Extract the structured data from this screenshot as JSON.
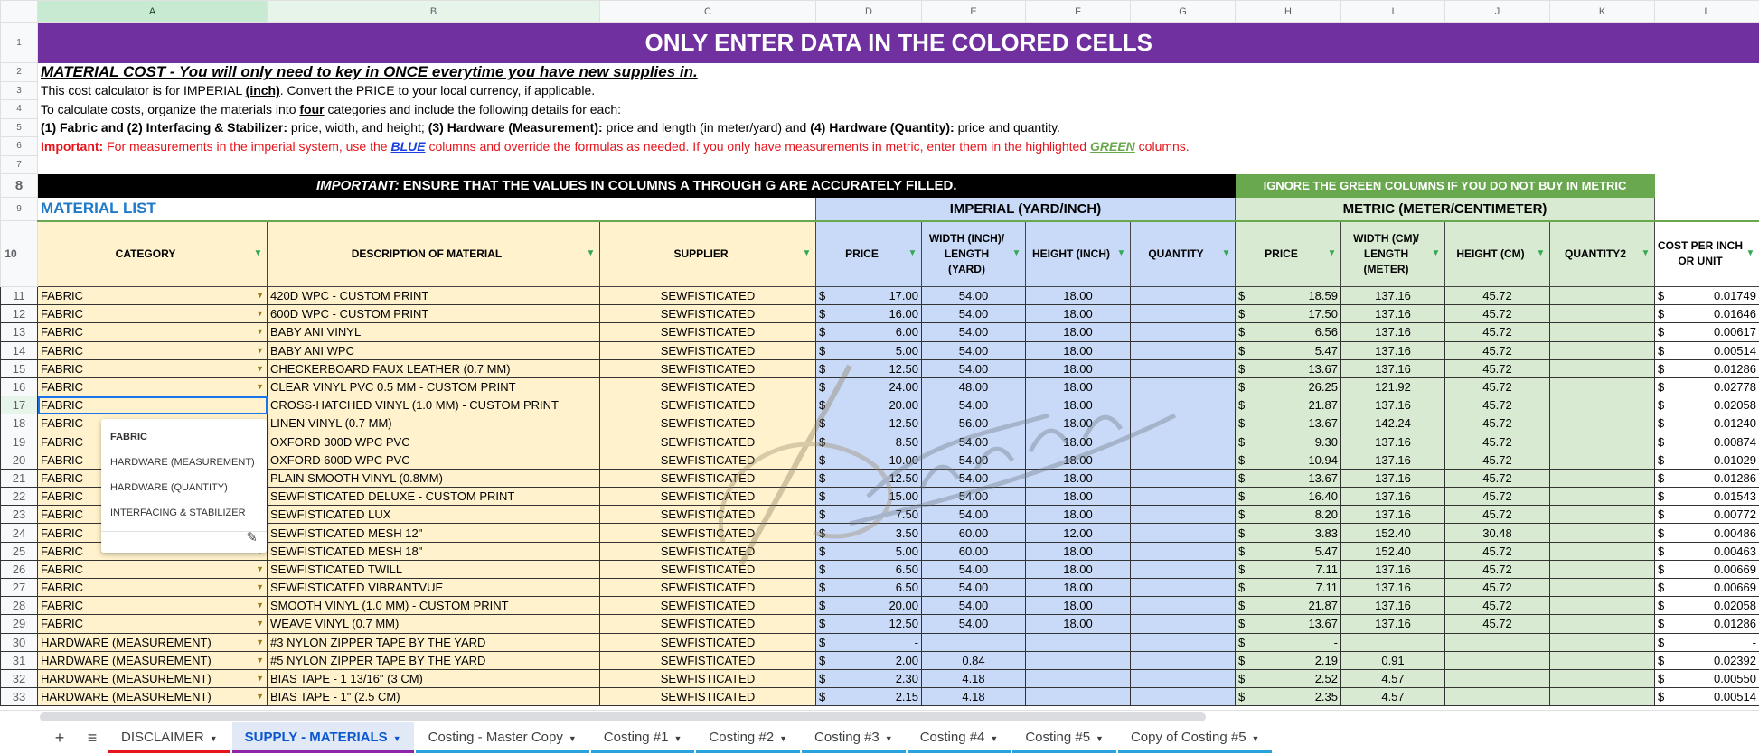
{
  "columns": [
    "A",
    "B",
    "C",
    "D",
    "E",
    "F",
    "G",
    "H",
    "I",
    "J",
    "K",
    "L"
  ],
  "title": "ONLY ENTER DATA IN THE COLORED CELLS",
  "intro": {
    "line2": "MATERIAL COST - You will only need to key in ONCE everytime you have new supplies in.",
    "line3a": "This cost calculator is for IMPERIAL ",
    "line3b": "(inch)",
    "line3c": ".  Convert the PRICE to your local currency, if applicable.",
    "line4a": "To calculate costs, organize the materials into ",
    "line4b": "four",
    "line4c": " categories and include the following details for each:",
    "line5a": "(1) Fabric and (2) Interfacing & Stabilizer:",
    "line5b": " price, width, and height; ",
    "line5c": "(3) Hardware (Measurement):",
    "line5d": " price and length (in meter/yard) and ",
    "line5e": "(4) Hardware (Quantity):",
    "line5f": " price and quantity.",
    "line6a": "Important:",
    "line6b": " For measurements in the imperial system, use the ",
    "line6c": "BLUE",
    "line6d": " columns and override the formulas as needed. If you only have measurements in metric, enter them in the highlighted ",
    "line6e": "GREEN",
    "line6f": " columns."
  },
  "banner": {
    "important_em": "IMPORTANT:",
    "important_rest": " ENSURE THAT THE VALUES IN COLUMNS A THROUGH G ARE ACCURATELY FILLED.",
    "green_note": "IGNORE THE GREEN COLUMNS IF YOU DO NOT BUY IN METRIC"
  },
  "sections": {
    "material_list": "MATERIAL LIST",
    "imperial": "IMPERIAL (YARD/INCH)",
    "metric": "METRIC (METER/CENTIMETER)"
  },
  "headers": [
    "CATEGORY",
    "DESCRIPTION OF MATERIAL",
    "SUPPLIER",
    "PRICE",
    "WIDTH (INCH)/ LENGTH (YARD)",
    "HEIGHT (INCH)",
    "QUANTITY",
    "PRICE",
    "WIDTH (CM)/ LENGTH (METER)",
    "HEIGHT (CM)",
    "QUANTITY2",
    "COST PER INCH OR UNIT"
  ],
  "currency": "$",
  "rows": [
    [
      "FABRIC",
      "420D WPC - CUSTOM PRINT",
      "SEWFISTICATED",
      "17.00",
      "54.00",
      "18.00",
      "",
      "18.59",
      "137.16",
      "45.72",
      "",
      "0.01749"
    ],
    [
      "FABRIC",
      "600D WPC - CUSTOM PRINT",
      "SEWFISTICATED",
      "16.00",
      "54.00",
      "18.00",
      "",
      "17.50",
      "137.16",
      "45.72",
      "",
      "0.01646"
    ],
    [
      "FABRIC",
      "BABY ANI VINYL",
      "SEWFISTICATED",
      "6.00",
      "54.00",
      "18.00",
      "",
      "6.56",
      "137.16",
      "45.72",
      "",
      "0.00617"
    ],
    [
      "FABRIC",
      "BABY ANI WPC",
      "SEWFISTICATED",
      "5.00",
      "54.00",
      "18.00",
      "",
      "5.47",
      "137.16",
      "45.72",
      "",
      "0.00514"
    ],
    [
      "FABRIC",
      "CHECKERBOARD FAUX LEATHER (0.7 MM)",
      "SEWFISTICATED",
      "12.50",
      "54.00",
      "18.00",
      "",
      "13.67",
      "137.16",
      "45.72",
      "",
      "0.01286"
    ],
    [
      "FABRIC",
      "CLEAR VINYL PVC 0.5 MM - CUSTOM PRINT",
      "SEWFISTICATED",
      "24.00",
      "48.00",
      "18.00",
      "",
      "26.25",
      "121.92",
      "45.72",
      "",
      "0.02778"
    ],
    [
      "FABRIC",
      "CROSS-HATCHED VINYL (1.0 MM)  - CUSTOM PRINT",
      "SEWFISTICATED",
      "20.00",
      "54.00",
      "18.00",
      "",
      "21.87",
      "137.16",
      "45.72",
      "",
      "0.02058"
    ],
    [
      "FABRIC",
      "LINEN VINYL (0.7 MM)",
      "SEWFISTICATED",
      "12.50",
      "56.00",
      "18.00",
      "",
      "13.67",
      "142.24",
      "45.72",
      "",
      "0.01240"
    ],
    [
      "FABRIC",
      "OXFORD 300D WPC PVC",
      "SEWFISTICATED",
      "8.50",
      "54.00",
      "18.00",
      "",
      "9.30",
      "137.16",
      "45.72",
      "",
      "0.00874"
    ],
    [
      "FABRIC",
      "OXFORD 600D WPC PVC",
      "SEWFISTICATED",
      "10.00",
      "54.00",
      "18.00",
      "",
      "10.94",
      "137.16",
      "45.72",
      "",
      "0.01029"
    ],
    [
      "FABRIC",
      "PLAIN SMOOTH VINYL (0.8MM)",
      "SEWFISTICATED",
      "12.50",
      "54.00",
      "18.00",
      "",
      "13.67",
      "137.16",
      "45.72",
      "",
      "0.01286"
    ],
    [
      "FABRIC",
      "SEWFISTICATED DELUXE - CUSTOM PRINT",
      "SEWFISTICATED",
      "15.00",
      "54.00",
      "18.00",
      "",
      "16.40",
      "137.16",
      "45.72",
      "",
      "0.01543"
    ],
    [
      "FABRIC",
      "SEWFISTICATED LUX",
      "SEWFISTICATED",
      "7.50",
      "54.00",
      "18.00",
      "",
      "8.20",
      "137.16",
      "45.72",
      "",
      "0.00772"
    ],
    [
      "FABRIC",
      "SEWFISTICATED MESH 12\"",
      "SEWFISTICATED",
      "3.50",
      "60.00",
      "12.00",
      "",
      "3.83",
      "152.40",
      "30.48",
      "",
      "0.00486"
    ],
    [
      "FABRIC",
      "SEWFISTICATED MESH 18\"",
      "SEWFISTICATED",
      "5.00",
      "60.00",
      "18.00",
      "",
      "5.47",
      "152.40",
      "45.72",
      "",
      "0.00463"
    ],
    [
      "FABRIC",
      "SEWFISTICATED TWILL",
      "SEWFISTICATED",
      "6.50",
      "54.00",
      "18.00",
      "",
      "7.11",
      "137.16",
      "45.72",
      "",
      "0.00669"
    ],
    [
      "FABRIC",
      "SEWFISTICATED VIBRANTVUE",
      "SEWFISTICATED",
      "6.50",
      "54.00",
      "18.00",
      "",
      "7.11",
      "137.16",
      "45.72",
      "",
      "0.00669"
    ],
    [
      "FABRIC",
      "SMOOTH VINYL (1.0 MM) - CUSTOM PRINT",
      "SEWFISTICATED",
      "20.00",
      "54.00",
      "18.00",
      "",
      "21.87",
      "137.16",
      "45.72",
      "",
      "0.02058"
    ],
    [
      "FABRIC",
      "WEAVE VINYL (0.7 MM)",
      "SEWFISTICATED",
      "12.50",
      "54.00",
      "18.00",
      "",
      "13.67",
      "137.16",
      "45.72",
      "",
      "0.01286"
    ],
    [
      "HARDWARE (MEASUREMENT)",
      "#3 NYLON ZIPPER TAPE BY THE YARD",
      "SEWFISTICATED",
      "-",
      "",
      "",
      "",
      "-",
      "",
      "",
      "",
      "-"
    ],
    [
      "HARDWARE (MEASUREMENT)",
      "#5 NYLON ZIPPER TAPE BY THE YARD",
      "SEWFISTICATED",
      "2.00",
      "0.84",
      "",
      "",
      "2.19",
      "0.91",
      "",
      "",
      "0.02392"
    ],
    [
      "HARDWARE (MEASUREMENT)",
      "BIAS TAPE - 1 13/16\" (3 CM)",
      "SEWFISTICATED",
      "2.30",
      "4.18",
      "",
      "",
      "2.52",
      "4.57",
      "",
      "",
      "0.00550"
    ],
    [
      "HARDWARE (MEASUREMENT)",
      "BIAS TAPE - 1\" (2.5 CM)",
      "SEWFISTICATED",
      "2.15",
      "4.18",
      "",
      "",
      "2.35",
      "4.57",
      "",
      "",
      "0.00514"
    ]
  ],
  "editing_cell": {
    "row": 17,
    "value": "FABRIC"
  },
  "dropdown": {
    "options": [
      "FABRIC",
      "HARDWARE (MEASUREMENT)",
      "HARDWARE (QUANTITY)",
      "INTERFACING & STABILIZER"
    ],
    "edit_icon": "pencil-icon"
  },
  "watermark": "SewFisticated",
  "tabs": {
    "add_icon": "plus-icon",
    "list_icon": "menu-icon",
    "items": [
      {
        "label": "DISCLAIMER",
        "color": "#e8141b",
        "active": false
      },
      {
        "label": "SUPPLY - MATERIALS",
        "color": "#8e24aa",
        "active": true
      },
      {
        "label": "Costing - Master Copy",
        "color": "#29a3dc",
        "active": false
      },
      {
        "label": "Costing #1",
        "color": "#29a3dc",
        "active": false
      },
      {
        "label": "Costing #2",
        "color": "#29a3dc",
        "active": false
      },
      {
        "label": "Costing #3",
        "color": "#29a3dc",
        "active": false
      },
      {
        "label": "Costing #4",
        "color": "#29a3dc",
        "active": false
      },
      {
        "label": "Costing #5",
        "color": "#29a3dc",
        "active": false
      },
      {
        "label": "Copy of Costing #5",
        "color": "#29a3dc",
        "active": false
      }
    ]
  },
  "colors": {
    "title_bg": "#7030a0",
    "input_yellow": "#fff2cc",
    "imperial_blue": "#c9daf8",
    "metric_green": "#d9ead3",
    "green_header": "#6aa84f"
  }
}
